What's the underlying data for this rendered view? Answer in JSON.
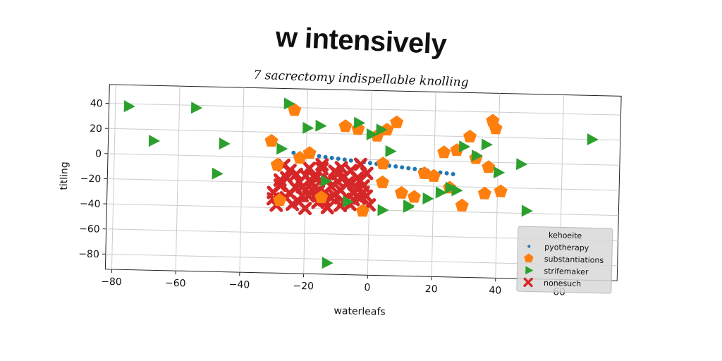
{
  "title": "w intensively",
  "subtitle": "7 sacrectomy indispellable knolling",
  "chart_data": {
    "type": "scatter",
    "xlabel": "waterleafs",
    "ylabel": "titling",
    "xlim": [
      -82,
      78
    ],
    "ylim": [
      -92,
      55
    ],
    "xticks": [
      -80,
      -60,
      -40,
      -20,
      0,
      20,
      40,
      60
    ],
    "yticks": [
      40,
      20,
      0,
      -20,
      -40,
      -60,
      -80
    ],
    "grid": true,
    "legend": {
      "title": "kehoeite",
      "placement": "lower-right"
    },
    "colors": {
      "pyotherapy": "#1f77b4",
      "substantiations": "#ff7f0e",
      "strifemaker": "#2ca02c",
      "nonesuch": "#d62728"
    },
    "series": [
      {
        "name": "pyotherapy",
        "marker": "circle",
        "x": [
          -24,
          -22,
          -20,
          -18,
          -16,
          -14,
          -12,
          -10,
          -8,
          -6,
          -4,
          -2,
          0,
          2,
          4,
          6,
          8,
          10,
          12,
          14,
          16,
          18,
          20,
          22,
          24,
          26
        ],
        "y": [
          4.0,
          3.4,
          2.9,
          2.3,
          1.8,
          1.2,
          0.6,
          0.1,
          -0.5,
          -1.1,
          -1.6,
          -2.2,
          -2.8,
          -3.3,
          -3.9,
          -4.5,
          -5.0,
          -5.6,
          -6.2,
          -6.7,
          -7.3,
          -7.8,
          -8.4,
          -9.0,
          -9.5,
          -10.1
        ]
      },
      {
        "name": "substantiations",
        "marker": "pentagon",
        "x": [
          -31,
          -29,
          -24,
          -19,
          -8,
          5,
          8,
          -4,
          2,
          -28,
          -15,
          14,
          20,
          23,
          27,
          31,
          33,
          36,
          37,
          38,
          39,
          41,
          4,
          10,
          17,
          29,
          -2,
          4,
          25,
          -22
        ],
        "y": [
          13,
          -6,
          38,
          4,
          26,
          24,
          30,
          24,
          19,
          -34,
          -31,
          -29,
          -12,
          7,
          9,
          20,
          3,
          -25,
          -4,
          33,
          27,
          -23,
          -18,
          -26,
          -10,
          -35,
          -41,
          -3,
          -21,
          0
        ],
        "labels": []
      },
      {
        "name": "strifemaker",
        "marker": "triangle",
        "x": [
          -76,
          -55,
          -68,
          -46,
          -48,
          -28,
          -26,
          -20,
          -16,
          -4,
          0,
          3,
          6,
          12,
          18,
          22,
          27,
          29,
          33,
          36,
          40,
          47,
          69,
          49,
          25,
          -13,
          -7,
          4,
          12,
          -14
        ],
        "y": [
          38,
          38,
          11,
          10,
          -14,
          7,
          43,
          24,
          26,
          29,
          20,
          24,
          7,
          -37,
          -30,
          -25,
          -23,
          12,
          5,
          14,
          -8,
          -1,
          20,
          -38,
          -21,
          -83,
          -34,
          -40,
          -36,
          -18
        ]
      },
      {
        "name": "nonesuch",
        "marker": "x",
        "x": [
          -30,
          -28,
          -26,
          -25,
          -23,
          -22,
          -20,
          -19,
          -18,
          -16,
          -15,
          -14,
          -13,
          -12,
          -11,
          -10,
          -9,
          -8,
          -7,
          -6,
          -5,
          -4,
          -3,
          -2,
          -1,
          0,
          -29,
          -27,
          -24,
          -21,
          -17,
          -13,
          -9,
          -5,
          -2,
          -26,
          -20,
          -15,
          -10,
          -6,
          -3,
          -28,
          -23,
          -18,
          -12,
          -8,
          -4,
          -1,
          -25,
          -16,
          -11,
          -7,
          -19,
          -14,
          -22,
          -30,
          -9,
          -3,
          -17,
          -21
        ],
        "y": [
          -28,
          -18,
          -32,
          -10,
          -24,
          -35,
          -14,
          -30,
          -20,
          -26,
          -8,
          -33,
          -17,
          -22,
          -29,
          -12,
          -25,
          -34,
          -19,
          -9,
          -27,
          -15,
          -31,
          -21,
          -11,
          -36,
          -38,
          -6,
          -37,
          -23,
          -13,
          -39,
          -7,
          -32,
          -26,
          -16,
          -40,
          -5,
          -18,
          -36,
          -4,
          -22,
          -13,
          -25,
          -31,
          -14,
          -23,
          -29,
          -28,
          -35,
          -10,
          -20,
          -8,
          -27,
          -19,
          -33,
          -37,
          -17,
          -16,
          -30
        ]
      }
    ]
  }
}
